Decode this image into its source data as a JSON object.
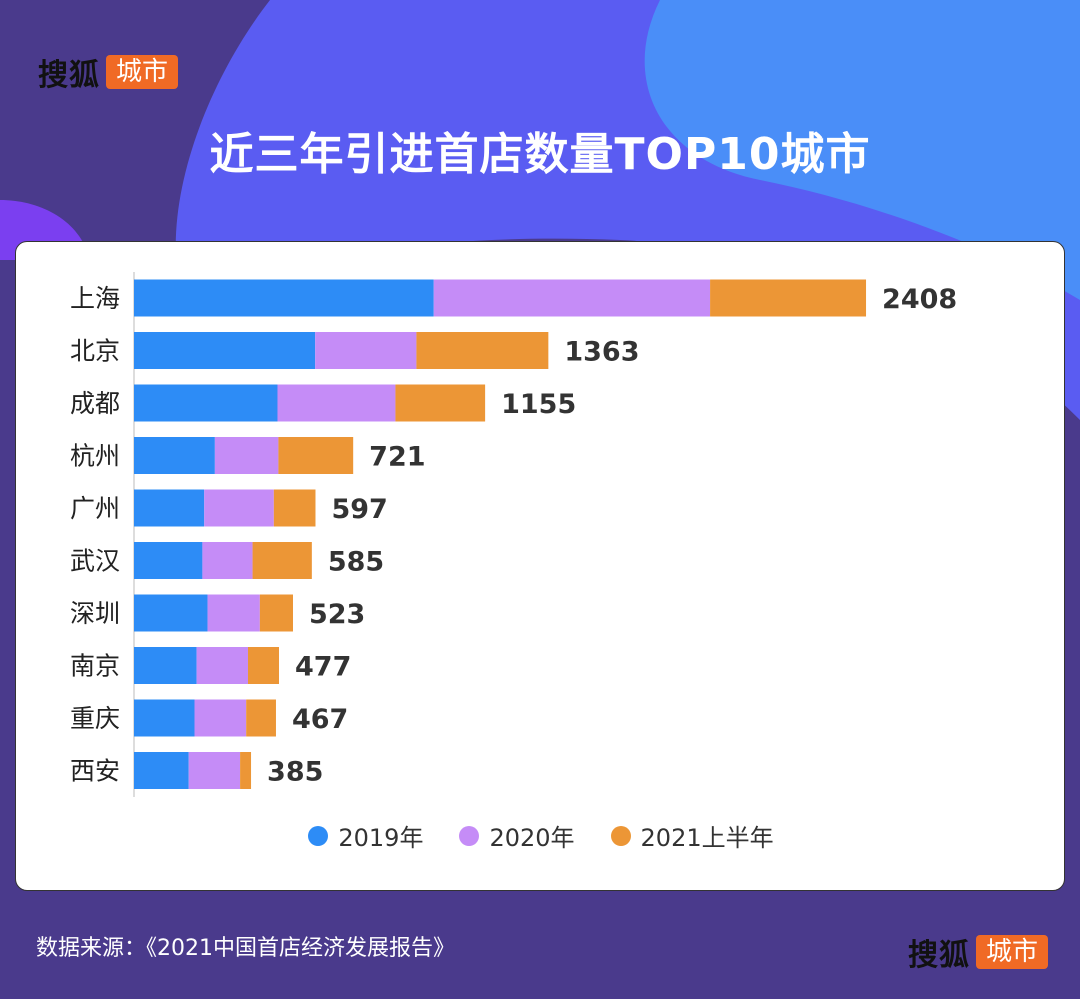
{
  "brand": {
    "name": "搜狐",
    "badge": "城市"
  },
  "title": "近三年引进首店数量TOP10城市",
  "source": "数据来源：《2021中国首店经济发展报告》",
  "chart_data": {
    "type": "bar",
    "orientation": "horizontal",
    "stacked": true,
    "title": "近三年引进首店数量TOP10城市",
    "categories": [
      "上海",
      "北京",
      "成都",
      "杭州",
      "广州",
      "武汉",
      "深圳",
      "南京",
      "重庆",
      "西安"
    ],
    "series": [
      {
        "name": "2019年",
        "color": "#2d8cf6",
        "values": [
          986,
          596,
          472,
          266,
          231,
          225,
          242,
          206,
          199,
          180
        ]
      },
      {
        "name": "2020年",
        "color": "#c58cf7",
        "values": [
          909,
          333,
          388,
          209,
          229,
          165,
          172,
          169,
          170,
          169
        ]
      },
      {
        "name": "2021上半年",
        "color": "#ec9636",
        "values": [
          513,
          434,
          295,
          246,
          137,
          195,
          109,
          102,
          98,
          36
        ]
      }
    ],
    "totals": [
      "2408",
      "1363",
      "1155",
      "721",
      "597",
      "585",
      "523",
      "477",
      "467",
      "385"
    ],
    "xlim": [
      0,
      3000
    ],
    "legend_position": "bottom",
    "grid": false
  }
}
